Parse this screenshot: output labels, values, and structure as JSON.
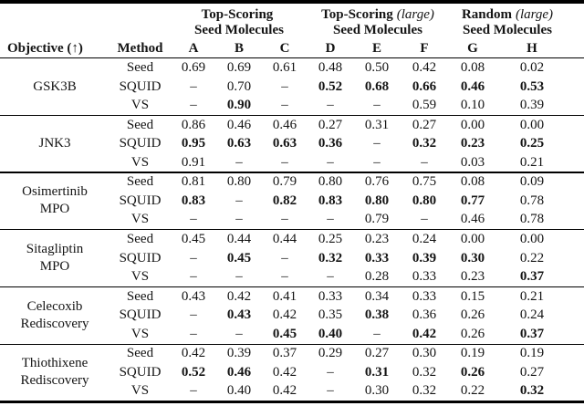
{
  "table": {
    "header": {
      "objective_label": "Objective (↑)",
      "method_label": "Method",
      "groups": [
        {
          "title": "Top-Scoring",
          "title_suffix": "",
          "subtitle": "Seed Molecules"
        },
        {
          "title": "Top-Scoring",
          "title_suffix": "(large)",
          "subtitle": "Seed Molecules"
        },
        {
          "title": "Random",
          "title_suffix": "(large)",
          "subtitle": "Seed Molecules"
        }
      ],
      "column_letters": [
        "A",
        "B",
        "C",
        "D",
        "E",
        "F",
        "G",
        "H"
      ]
    },
    "missing_marker": "–",
    "blocks": [
      {
        "objective": "GSK3B",
        "rows": [
          {
            "method": "Seed",
            "values": [
              "0.69",
              "0.69",
              "0.61",
              "0.48",
              "0.50",
              "0.42",
              "0.08",
              "0.02"
            ],
            "bold": [
              false,
              false,
              false,
              false,
              false,
              false,
              false,
              false
            ]
          },
          {
            "method": "SQUID",
            "values": [
              "–",
              "0.70",
              "–",
              "0.52",
              "0.68",
              "0.66",
              "0.46",
              "0.53"
            ],
            "bold": [
              false,
              false,
              false,
              true,
              true,
              true,
              true,
              true
            ]
          },
          {
            "method": "VS",
            "values": [
              "–",
              "0.90",
              "–",
              "–",
              "–",
              "0.59",
              "0.10",
              "0.39"
            ],
            "bold": [
              false,
              true,
              false,
              false,
              false,
              false,
              false,
              false
            ]
          }
        ]
      },
      {
        "objective": "JNK3",
        "rows": [
          {
            "method": "Seed",
            "values": [
              "0.86",
              "0.46",
              "0.46",
              "0.27",
              "0.31",
              "0.27",
              "0.00",
              "0.00"
            ],
            "bold": [
              false,
              false,
              false,
              false,
              false,
              false,
              false,
              false
            ]
          },
          {
            "method": "SQUID",
            "values": [
              "0.95",
              "0.63",
              "0.63",
              "0.36",
              "–",
              "0.32",
              "0.23",
              "0.25"
            ],
            "bold": [
              true,
              true,
              true,
              true,
              false,
              true,
              true,
              true
            ]
          },
          {
            "method": "VS",
            "values": [
              "0.91",
              "–",
              "–",
              "–",
              "–",
              "–",
              "0.03",
              "0.21"
            ],
            "bold": [
              false,
              false,
              false,
              false,
              false,
              false,
              false,
              false
            ]
          }
        ]
      },
      {
        "objective": "Osimertinib\nMPO",
        "rows": [
          {
            "method": "Seed",
            "values": [
              "0.81",
              "0.80",
              "0.79",
              "0.80",
              "0.76",
              "0.75",
              "0.08",
              "0.09"
            ],
            "bold": [
              false,
              false,
              false,
              false,
              false,
              false,
              false,
              false
            ]
          },
          {
            "method": "SQUID",
            "values": [
              "0.83",
              "–",
              "0.82",
              "0.83",
              "0.80",
              "0.80",
              "0.77",
              "0.78"
            ],
            "bold": [
              true,
              false,
              true,
              true,
              true,
              true,
              true,
              false
            ]
          },
          {
            "method": "VS",
            "values": [
              "–",
              "–",
              "–",
              "–",
              "0.79",
              "–",
              "0.46",
              "0.78"
            ],
            "bold": [
              false,
              false,
              false,
              false,
              false,
              false,
              false,
              false
            ]
          }
        ]
      },
      {
        "objective": "Sitagliptin\nMPO",
        "rows": [
          {
            "method": "Seed",
            "values": [
              "0.45",
              "0.44",
              "0.44",
              "0.25",
              "0.23",
              "0.24",
              "0.00",
              "0.00"
            ],
            "bold": [
              false,
              false,
              false,
              false,
              false,
              false,
              false,
              false
            ]
          },
          {
            "method": "SQUID",
            "values": [
              "–",
              "0.45",
              "–",
              "0.32",
              "0.33",
              "0.39",
              "0.30",
              "0.22"
            ],
            "bold": [
              false,
              true,
              false,
              true,
              true,
              true,
              true,
              false
            ]
          },
          {
            "method": "VS",
            "values": [
              "–",
              "–",
              "–",
              "–",
              "0.28",
              "0.33",
              "0.23",
              "0.37"
            ],
            "bold": [
              false,
              false,
              false,
              false,
              false,
              false,
              false,
              true
            ]
          }
        ]
      },
      {
        "objective": "Celecoxib\nRediscovery",
        "rows": [
          {
            "method": "Seed",
            "values": [
              "0.43",
              "0.42",
              "0.41",
              "0.33",
              "0.34",
              "0.33",
              "0.15",
              "0.21"
            ],
            "bold": [
              false,
              false,
              false,
              false,
              false,
              false,
              false,
              false
            ]
          },
          {
            "method": "SQUID",
            "values": [
              "–",
              "0.43",
              "0.42",
              "0.35",
              "0.38",
              "0.36",
              "0.26",
              "0.24"
            ],
            "bold": [
              false,
              true,
              false,
              false,
              true,
              false,
              false,
              false
            ]
          },
          {
            "method": "VS",
            "values": [
              "–",
              "–",
              "0.45",
              "0.40",
              "–",
              "0.42",
              "0.26",
              "0.37"
            ],
            "bold": [
              false,
              false,
              true,
              true,
              false,
              true,
              false,
              true
            ]
          }
        ]
      },
      {
        "objective": "Thiothixene\nRediscovery",
        "rows": [
          {
            "method": "Seed",
            "values": [
              "0.42",
              "0.39",
              "0.37",
              "0.29",
              "0.27",
              "0.30",
              "0.19",
              "0.19"
            ],
            "bold": [
              false,
              false,
              false,
              false,
              false,
              false,
              false,
              false
            ]
          },
          {
            "method": "SQUID",
            "values": [
              "0.52",
              "0.46",
              "0.42",
              "–",
              "0.31",
              "0.32",
              "0.26",
              "0.27"
            ],
            "bold": [
              true,
              true,
              false,
              false,
              true,
              false,
              true,
              false
            ]
          },
          {
            "method": "VS",
            "values": [
              "–",
              "0.40",
              "0.42",
              "–",
              "0.30",
              "0.32",
              "0.22",
              "0.32"
            ],
            "bold": [
              false,
              false,
              false,
              false,
              false,
              false,
              false,
              true
            ]
          }
        ]
      }
    ]
  },
  "colors": {
    "text": "#141414",
    "rule": "#000000",
    "background": "#ffffff"
  }
}
